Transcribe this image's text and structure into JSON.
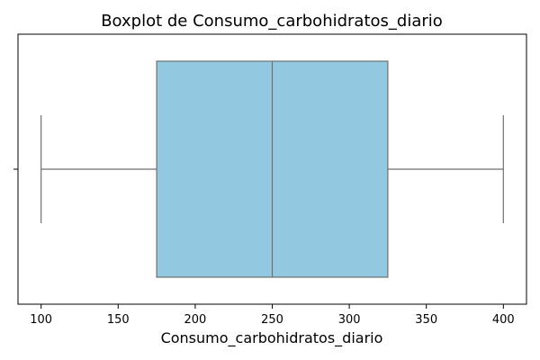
{
  "chart_data": {
    "type": "boxplot",
    "title": "Boxplot de Consumo_carbohidratos_diario",
    "xlabel": "Consumo_carbohidratos_diario",
    "ylabel": "",
    "orientation": "horizontal",
    "xlim": [
      85,
      415
    ],
    "x_ticks": [
      100,
      150,
      200,
      250,
      300,
      350,
      400
    ],
    "x_tick_labels": [
      "100",
      "150",
      "200",
      "250",
      "300",
      "350",
      "400"
    ],
    "y_tick_labels": [
      ""
    ],
    "grid": false,
    "colors": {
      "box_fill": "#92c9e0",
      "box_edge": "#707070"
    },
    "box": {
      "min": 100,
      "q1": 175,
      "median": 250,
      "q3": 325,
      "max": 400
    }
  }
}
